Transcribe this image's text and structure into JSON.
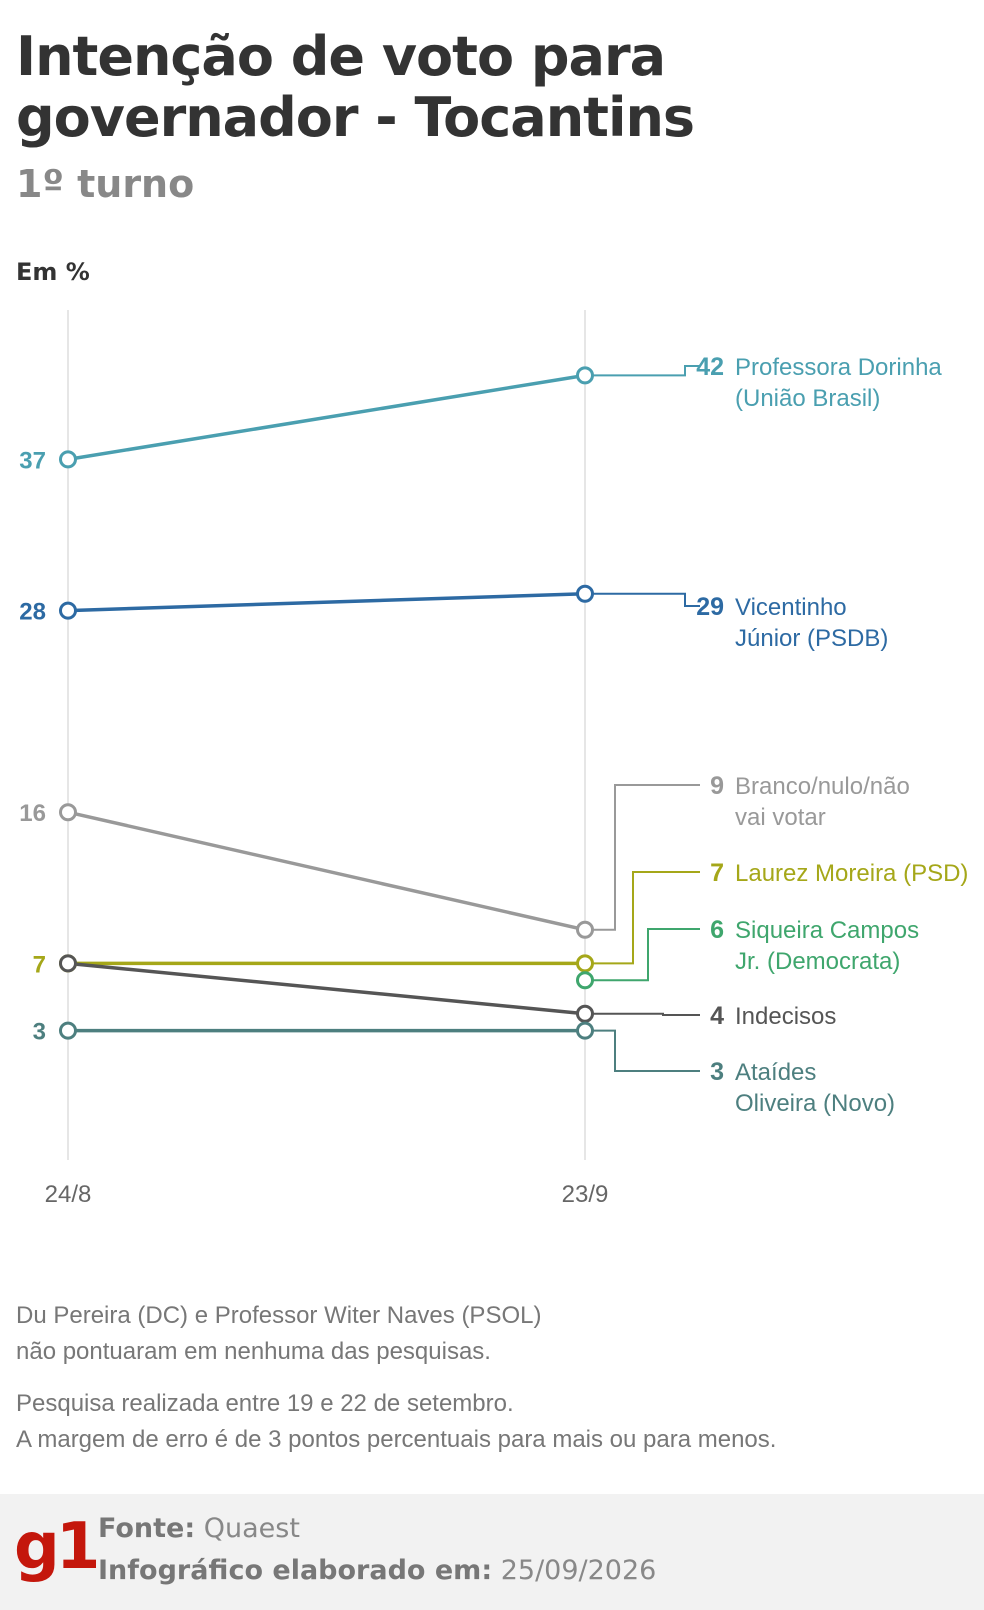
{
  "header": {
    "title": "Intenção de voto para governador - Tocantins",
    "subtitle": "1º turno",
    "unit": "Em %"
  },
  "chart_data": {
    "type": "line",
    "x": [
      "24/8",
      "23/9"
    ],
    "ylim": [
      0,
      45
    ],
    "grid": "vertical lines at each date",
    "legend": "direct labels at right end of lines",
    "series": [
      {
        "name": "Professora Dorinha (União Brasil)",
        "label_lines": [
          "Professora Dorinha",
          "(União Brasil)"
        ],
        "values": [
          37,
          42
        ],
        "color": "#4a9fb0"
      },
      {
        "name": "Vicentinho Júnior (PSDB)",
        "label_lines": [
          "Vicentinho",
          "Júnior (PSDB)"
        ],
        "values": [
          28,
          29
        ],
        "color": "#2d6aa3"
      },
      {
        "name": "Branco/nulo/não vai votar",
        "label_lines": [
          "Branco/nulo/não",
          "vai votar"
        ],
        "values": [
          16,
          9
        ],
        "color": "#999999"
      },
      {
        "name": "Laurez Moreira (PSD)",
        "label_lines": [
          "Laurez Moreira (PSD)"
        ],
        "values": [
          7,
          7
        ],
        "color": "#a5a719"
      },
      {
        "name": "Siqueira Campos Jr. (Democrata)",
        "label_lines": [
          "Siqueira Campos",
          "Jr. (Democrata)"
        ],
        "values": [
          null,
          6
        ],
        "color": "#3fa66d"
      },
      {
        "name": "Indecisos",
        "label_lines": [
          "Indecisos"
        ],
        "values": [
          7,
          4
        ],
        "color": "#555555"
      },
      {
        "name": "Ataídes Oliveira (Novo)",
        "label_lines": [
          "Ataídes",
          "Oliveira (Novo)"
        ],
        "values": [
          3,
          3
        ],
        "color": "#4d7f7f"
      }
    ]
  },
  "notes": {
    "line1": "Du Pereira (DC) e Professor Witer Naves (PSOL)",
    "line2": "não pontuaram em nenhuma das pesquisas.",
    "line3": "Pesquisa realizada entre 19 e 22 de setembro.",
    "line4": "A margem de erro é de 3 pontos percentuais para mais ou para menos."
  },
  "footer": {
    "logo": "g1",
    "source_label": "Fonte:",
    "source_value": "Quaest",
    "made_label": "Infográfico elaborado em:",
    "made_value": "25/09/2026"
  }
}
